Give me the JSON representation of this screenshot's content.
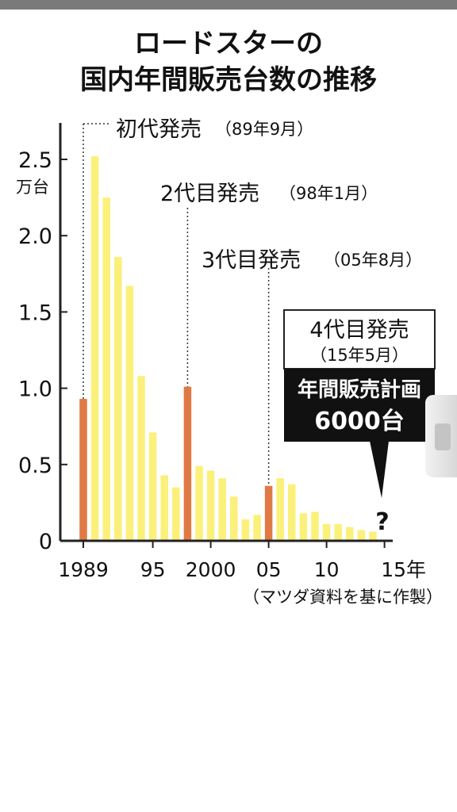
{
  "title_lines": [
    "ロードスターの",
    "国内年間販売台数の推移"
  ],
  "unit_label": "万台",
  "source_note": "（マツダ資料を基に作製）",
  "events": [
    {
      "label": "初代発売",
      "date": "（89年9月）"
    },
    {
      "label": "2代目発売",
      "date": "（98年1月）"
    },
    {
      "label": "3代目発売",
      "date": "（05年8月）"
    }
  ],
  "next_model": {
    "label": "4代目発売",
    "date": "（15年5月）",
    "plan_label": "年間販売計画",
    "plan_value": "6000台",
    "unknown_mark": "?"
  },
  "colors": {
    "regular_bar": "#fbf07a",
    "launch_bar": "#e07a45",
    "axis": "#222222"
  },
  "chart_data": {
    "type": "bar",
    "x": [
      1989,
      1990,
      1991,
      1992,
      1993,
      1994,
      1995,
      1996,
      1997,
      1998,
      1999,
      2000,
      2001,
      2002,
      2003,
      2004,
      2005,
      2006,
      2007,
      2008,
      2009,
      2010,
      2011,
      2012,
      2013,
      2014
    ],
    "values": [
      0.93,
      2.52,
      2.25,
      1.86,
      1.67,
      1.08,
      0.71,
      0.43,
      0.35,
      1.01,
      0.49,
      0.46,
      0.41,
      0.29,
      0.14,
      0.17,
      0.36,
      0.41,
      0.37,
      0.18,
      0.19,
      0.11,
      0.11,
      0.09,
      0.07,
      0.06
    ],
    "highlight_years": [
      1989,
      1998,
      2005
    ],
    "ylim": [
      0,
      2.6
    ],
    "yticks": [
      "0",
      "0.5",
      "1.0",
      "1.5",
      "2.0",
      "2.5"
    ],
    "xticks": [
      "1989",
      "95",
      "2000",
      "05",
      "10",
      "15年"
    ],
    "xtick_years": [
      1989,
      1995,
      2000,
      2005,
      2010,
      2015
    ]
  }
}
